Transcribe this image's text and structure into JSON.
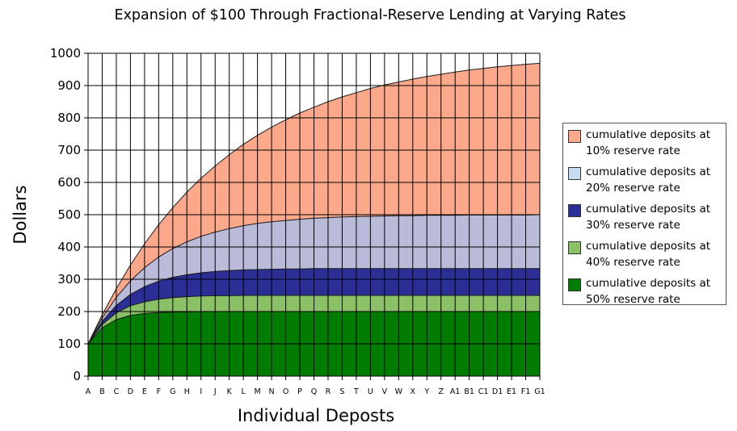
{
  "chart_data": {
    "type": "area",
    "title": "Expansion of $100 Through Fractional-Reserve Lending at Varying Rates",
    "xlabel": "Individual Deposts",
    "ylabel": "Dollars",
    "ylim": [
      0,
      1000
    ],
    "yticks": [
      0,
      100,
      200,
      300,
      400,
      500,
      600,
      700,
      800,
      900,
      1000
    ],
    "grid": true,
    "legend_position": "right",
    "categories": [
      "A",
      "B",
      "C",
      "D",
      "E",
      "F",
      "G",
      "H",
      "I",
      "J",
      "K",
      "L",
      "M",
      "N",
      "O",
      "P",
      "Q",
      "R",
      "S",
      "T",
      "U",
      "V",
      "W",
      "X",
      "Y",
      "Z",
      "A1",
      "B1",
      "C1",
      "D1",
      "E1",
      "F1",
      "G1"
    ],
    "series": [
      {
        "name": "cumulative deposits at 10% reserve rate",
        "color": "#fca98b",
        "values": [
          100,
          190,
          271,
          344,
          410,
          469,
          522,
          570,
          613,
          651,
          686,
          718,
          746,
          771,
          794,
          815,
          833,
          850,
          865,
          878,
          891,
          902,
          911,
          920,
          928,
          935,
          942,
          948,
          953,
          958,
          962,
          966,
          969
        ]
      },
      {
        "name": "cumulative deposits at 20% reserve rate",
        "color": "#babbd9",
        "values": [
          100,
          180,
          244,
          295,
          336,
          369,
          395,
          416,
          433,
          446,
          457,
          466,
          473,
          478,
          482,
          486,
          489,
          491,
          493,
          494,
          495,
          496,
          497,
          497,
          498,
          498,
          498,
          499,
          499,
          499,
          499,
          499,
          500
        ]
      },
      {
        "name": "cumulative deposits at 30% reserve rate",
        "color": "#2b2e95",
        "values": [
          100,
          170,
          219,
          253,
          277,
          294,
          306,
          314,
          320,
          324,
          327,
          329,
          330,
          331,
          332,
          332,
          333,
          333,
          333,
          333,
          333,
          333,
          333,
          333,
          333,
          333,
          333,
          333,
          333,
          333,
          333,
          333,
          333
        ]
      },
      {
        "name": "cumulative deposits at 40% reserve rate",
        "color": "#8bc066",
        "values": [
          100,
          160,
          196,
          218,
          230,
          238,
          243,
          246,
          248,
          249,
          249,
          250,
          250,
          250,
          250,
          250,
          250,
          250,
          250,
          250,
          250,
          250,
          250,
          250,
          250,
          250,
          250,
          250,
          250,
          250,
          250,
          250,
          250
        ]
      },
      {
        "name": "cumulative deposits at 50% reserve rate",
        "color": "#007d00",
        "values": [
          100,
          150,
          175,
          188,
          194,
          197,
          198,
          199,
          200,
          200,
          200,
          200,
          200,
          200,
          200,
          200,
          200,
          200,
          200,
          200,
          200,
          200,
          200,
          200,
          200,
          200,
          200,
          200,
          200,
          200,
          200,
          200,
          200
        ]
      }
    ]
  }
}
